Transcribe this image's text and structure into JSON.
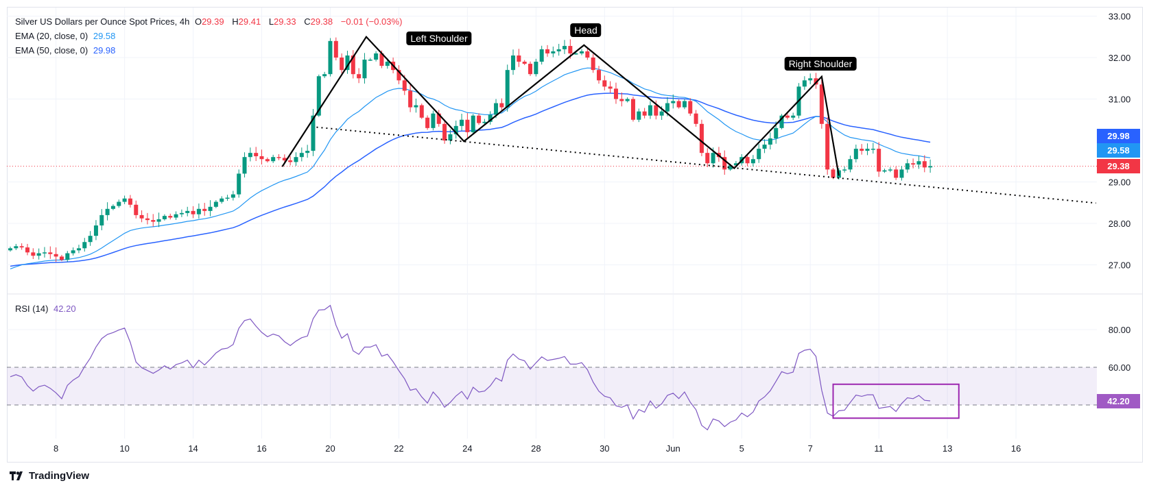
{
  "header": {
    "symbol": "Silver US Dollars per Ounce Spot Prices, 4h",
    "open_label": "O",
    "open": "29.39",
    "high_label": "H",
    "high": "29.41",
    "low_label": "L",
    "low": "29.33",
    "close_label": "C",
    "close": "29.38",
    "change": "−0.01 (−0.03%)"
  },
  "indicators": {
    "ema20_label": "EMA (20, close, 0)",
    "ema20_value": "29.58",
    "ema50_label": "EMA (50, close, 0)",
    "ema50_value": "29.98",
    "rsi_label": "RSI (14)",
    "rsi_value": "42.20"
  },
  "price_labels": {
    "ema50": "29.98",
    "ema20": "29.58",
    "last": "29.38",
    "rsi": "42.20"
  },
  "pattern_labels": {
    "left": "Left Shoulder",
    "head": "Head",
    "right": "Right Shoulder"
  },
  "branding": "TradingView",
  "colors": {
    "up": "#089981",
    "down": "#f23645",
    "ema20": "#2196f3",
    "ema50": "#2962ff",
    "rsi": "#7e57c2",
    "rsi_label": "#a05ac4"
  },
  "chart_data": [
    {
      "type": "candlestick",
      "title": "Silver US Dollars per Ounce Spot Prices, 4h",
      "ylim": [
        26.6,
        33.1
      ],
      "yticks": [
        "33.00",
        "32.00",
        "31.00",
        "29.00",
        "28.00",
        "27.00"
      ],
      "x_tick_labels": [
        {
          "bar": 8,
          "label": "8"
        },
        {
          "bar": 20,
          "label": "10"
        },
        {
          "bar": 32,
          "label": "14"
        },
        {
          "bar": 44,
          "label": "16"
        },
        {
          "bar": 56,
          "label": "20"
        },
        {
          "bar": 68,
          "label": "22"
        },
        {
          "bar": 80,
          "label": "24"
        },
        {
          "bar": 92,
          "label": "28"
        },
        {
          "bar": 104,
          "label": "30"
        },
        {
          "bar": 116,
          "label": "Jun"
        },
        {
          "bar": 128,
          "label": "5"
        },
        {
          "bar": 140,
          "label": "7"
        },
        {
          "bar": 152,
          "label": "11"
        },
        {
          "bar": 164,
          "label": "13"
        },
        {
          "bar": 176,
          "label": "16"
        }
      ],
      "close": [
        27.4,
        27.45,
        27.42,
        27.3,
        27.22,
        27.28,
        27.3,
        27.26,
        27.2,
        27.12,
        27.28,
        27.35,
        27.4,
        27.55,
        27.7,
        27.95,
        28.2,
        28.35,
        28.42,
        28.52,
        28.6,
        28.45,
        28.2,
        28.12,
        28.08,
        28.04,
        28.1,
        28.18,
        28.14,
        28.22,
        28.25,
        28.3,
        28.22,
        28.35,
        28.3,
        28.4,
        28.52,
        28.6,
        28.62,
        28.7,
        29.2,
        29.6,
        29.7,
        29.62,
        29.55,
        29.5,
        29.6,
        29.58,
        29.52,
        29.48,
        29.6,
        29.7,
        29.75,
        30.6,
        31.55,
        31.6,
        32.4,
        32.0,
        31.7,
        32.05,
        31.6,
        31.5,
        31.95,
        31.95,
        32.1,
        31.8,
        31.9,
        31.7,
        31.45,
        31.2,
        30.8,
        30.85,
        30.55,
        30.3,
        30.65,
        30.4,
        30.0,
        30.15,
        30.35,
        30.5,
        30.2,
        30.6,
        30.42,
        30.45,
        30.62,
        30.9,
        30.8,
        31.7,
        32.05,
        31.9,
        31.85,
        31.6,
        31.9,
        32.2,
        32.1,
        32.15,
        32.2,
        32.28,
        32.1,
        32.1,
        32.15,
        32.0,
        31.7,
        31.45,
        31.3,
        31.25,
        31.0,
        30.95,
        31.0,
        30.5,
        30.7,
        30.6,
        30.85,
        30.6,
        30.7,
        30.9,
        30.95,
        30.8,
        30.95,
        30.65,
        30.4,
        29.7,
        29.45,
        29.7,
        29.6,
        29.3,
        29.4,
        29.45,
        29.6,
        29.45,
        29.55,
        29.8,
        29.9,
        30.05,
        30.3,
        30.6,
        30.55,
        30.6,
        31.3,
        31.45,
        31.5,
        31.35,
        30.4,
        29.3,
        29.1,
        29.28,
        29.3,
        29.55,
        29.8,
        29.75,
        29.8,
        29.8,
        29.25,
        29.28,
        29.3,
        29.1,
        29.3,
        29.45,
        29.42,
        29.5,
        29.35,
        29.38
      ],
      "first_open": 27.35,
      "ema_seed": {
        "ema20": 26.85,
        "ema50": 26.95
      },
      "last_price": 29.38,
      "pattern_points": [
        [
          47.6,
          29.37
        ],
        [
          62.3,
          32.5
        ],
        [
          79.4,
          29.98
        ],
        [
          100.4,
          32.3
        ],
        [
          126.7,
          29.33
        ],
        [
          142,
          31.54
        ],
        [
          145,
          29.15
        ]
      ],
      "neckline": [
        [
          53.6,
          30.32
        ],
        [
          190,
          28.49
        ]
      ]
    },
    {
      "type": "line",
      "title": "RSI (14)",
      "ylim": [
        15,
        98
      ],
      "yticks": [
        "80.00",
        "60.00"
      ],
      "bands": [
        60,
        40
      ],
      "last_value": 42.2,
      "highlight_box": {
        "bar_from": 144,
        "bar_to": 166,
        "value_from": 51,
        "value_to": 33
      }
    }
  ]
}
